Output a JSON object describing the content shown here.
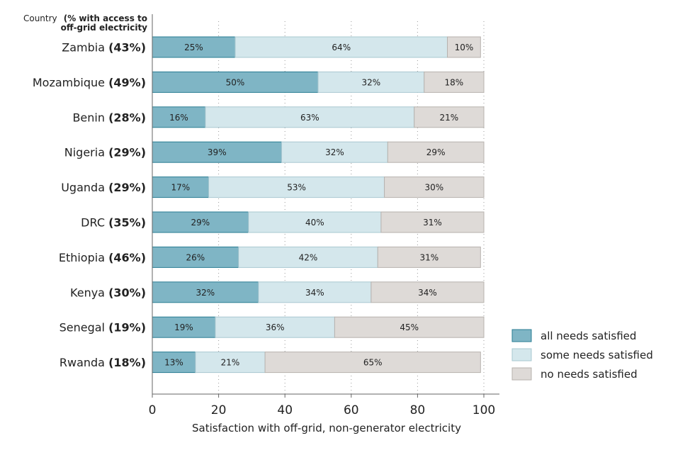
{
  "chart_data": {
    "type": "bar",
    "orientation": "horizontal",
    "stacked": true,
    "header": {
      "prefix": "Country",
      "bold_line1": "(% with access to",
      "bold_line2": "off-grid electricity"
    },
    "categories": [
      {
        "name": "Zambia",
        "access": "(43%)"
      },
      {
        "name": "Mozambique",
        "access": "(49%)"
      },
      {
        "name": "Benin",
        "access": "(28%)"
      },
      {
        "name": "Nigeria",
        "access": "(29%)"
      },
      {
        "name": "Uganda",
        "access": "(29%)"
      },
      {
        "name": "DRC",
        "access": "(35%)"
      },
      {
        "name": "Ethiopia",
        "access": "(46%)"
      },
      {
        "name": "Kenya",
        "access": "(30%)"
      },
      {
        "name": "Senegal",
        "access": "(19%)"
      },
      {
        "name": "Rwanda",
        "access": "(18%)"
      }
    ],
    "series": [
      {
        "name": "all needs satisfied",
        "color": "#7fb5c5",
        "stroke": "#2a7d93",
        "values": [
          25,
          50,
          16,
          39,
          17,
          29,
          26,
          32,
          19,
          13
        ],
        "labels": [
          "25%",
          "50%",
          "16%",
          "39%",
          "17%",
          "29%",
          "26%",
          "32%",
          "19%",
          "13%"
        ]
      },
      {
        "name": "some needs satisfied",
        "color": "#d4e7ec",
        "stroke": "#a9c8d1",
        "values": [
          64,
          32,
          63,
          32,
          53,
          40,
          42,
          34,
          36,
          21
        ],
        "labels": [
          "64%",
          "32%",
          "63%",
          "32%",
          "53%",
          "40%",
          "42%",
          "34%",
          "36%",
          "21%"
        ]
      },
      {
        "name": "no needs satisfied",
        "color": "#dedad7",
        "stroke": "#b7b2ae",
        "values": [
          10,
          18,
          21,
          29,
          30,
          31,
          31,
          34,
          45,
          65
        ],
        "labels": [
          "10%",
          "18%",
          "21%",
          "29%",
          "30%",
          "31%",
          "31%",
          "34%",
          "45%",
          "65%"
        ]
      }
    ],
    "xlabel": "Satisfaction with off-grid, non-generator electricity",
    "xlim": [
      0,
      100
    ],
    "xticks": [
      0,
      20,
      40,
      60,
      80,
      100
    ],
    "xtick_labels": [
      "0",
      "20",
      "40",
      "60",
      "80",
      "100"
    ],
    "grid": "vertical dotted",
    "legend": "bottom-right"
  }
}
